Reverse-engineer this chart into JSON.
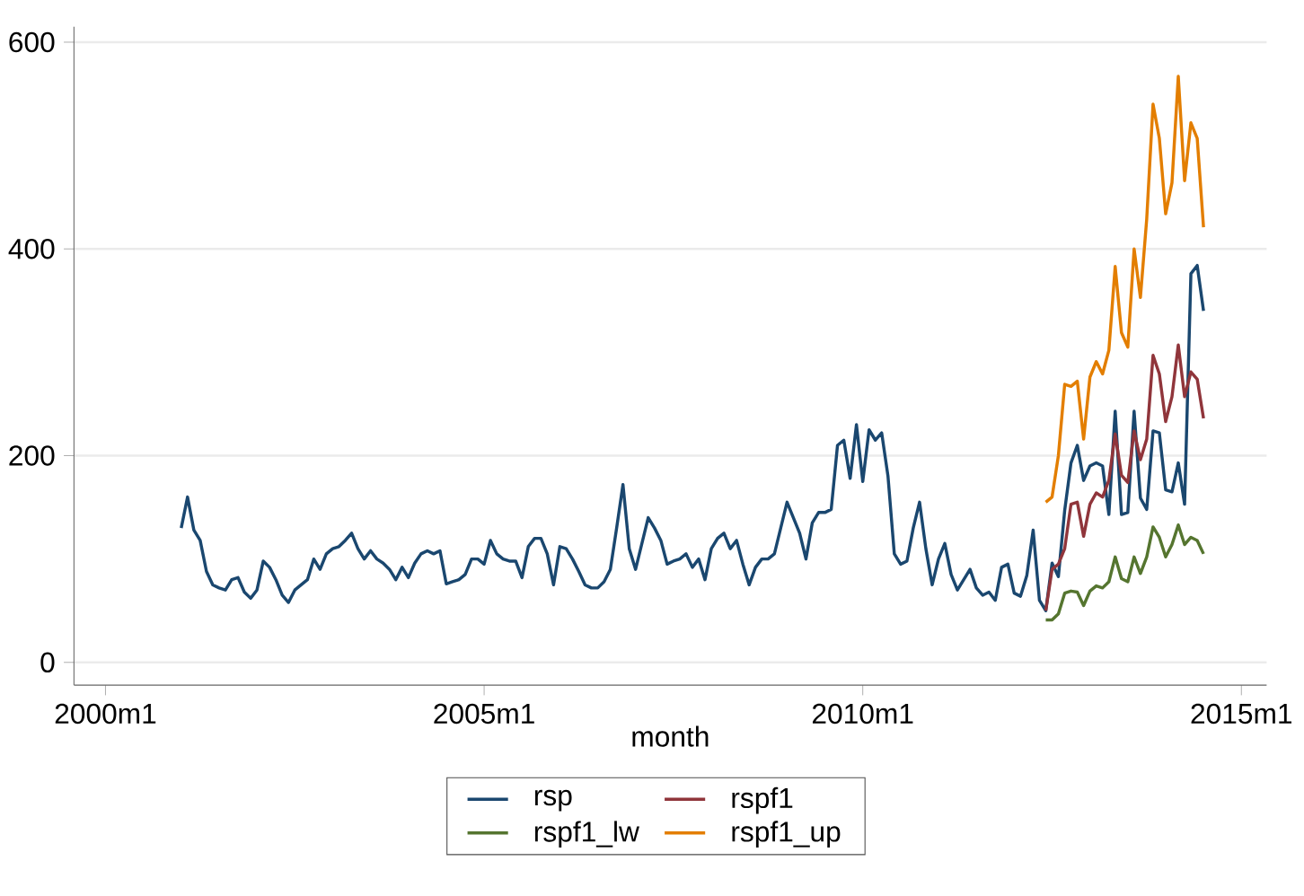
{
  "chart_data": {
    "type": "line",
    "xlabel": "month",
    "xlim": [
      "1999-08",
      "2015-05"
    ],
    "ylim": [
      -22,
      615
    ],
    "xticks": [
      {
        "value": "2000-01",
        "label": "2000m1"
      },
      {
        "value": "2005-01",
        "label": "2005m1"
      },
      {
        "value": "2010-01",
        "label": "2010m1"
      },
      {
        "value": "2015-01",
        "label": "2015m1"
      }
    ],
    "yticks": [
      0,
      200,
      400,
      600
    ],
    "grid": "y",
    "legend": "bottom",
    "series": [
      {
        "name": "rsp",
        "color": "#1a476f",
        "x": [
          "2001-01",
          "2001-02",
          "2001-03",
          "2001-04",
          "2001-05",
          "2001-06",
          "2001-07",
          "2001-08",
          "2001-09",
          "2001-10",
          "2001-11",
          "2001-12",
          "2002-01",
          "2002-02",
          "2002-03",
          "2002-04",
          "2002-05",
          "2002-06",
          "2002-07",
          "2002-08",
          "2002-09",
          "2002-10",
          "2002-11",
          "2002-12",
          "2003-01",
          "2003-02",
          "2003-03",
          "2003-04",
          "2003-05",
          "2003-06",
          "2003-07",
          "2003-08",
          "2003-09",
          "2003-10",
          "2003-11",
          "2003-12",
          "2004-01",
          "2004-02",
          "2004-03",
          "2004-04",
          "2004-05",
          "2004-06",
          "2004-07",
          "2004-08",
          "2004-09",
          "2004-10",
          "2004-11",
          "2004-12",
          "2005-01",
          "2005-02",
          "2005-03",
          "2005-04",
          "2005-05",
          "2005-06",
          "2005-07",
          "2005-08",
          "2005-09",
          "2005-10",
          "2005-11",
          "2005-12",
          "2006-01",
          "2006-02",
          "2006-03",
          "2006-04",
          "2006-05",
          "2006-06",
          "2006-07",
          "2006-08",
          "2006-09",
          "2006-10",
          "2006-11",
          "2006-12",
          "2007-01",
          "2007-02",
          "2007-03",
          "2007-04",
          "2007-05",
          "2007-06",
          "2007-07",
          "2007-08",
          "2007-09",
          "2007-10",
          "2007-11",
          "2007-12",
          "2008-01",
          "2008-02",
          "2008-03",
          "2008-04",
          "2008-05",
          "2008-06",
          "2008-07",
          "2008-08",
          "2008-09",
          "2008-10",
          "2008-11",
          "2008-12",
          "2009-01",
          "2009-02",
          "2009-03",
          "2009-04",
          "2009-05",
          "2009-06",
          "2009-07",
          "2009-08",
          "2009-09",
          "2009-10",
          "2009-11",
          "2009-12",
          "2010-01",
          "2010-02",
          "2010-03",
          "2010-04",
          "2010-05",
          "2010-06",
          "2010-07",
          "2010-08",
          "2010-09",
          "2010-10",
          "2010-11",
          "2010-12",
          "2011-01",
          "2011-02",
          "2011-03",
          "2011-04",
          "2011-05",
          "2011-06",
          "2011-07",
          "2011-08",
          "2011-09",
          "2011-10",
          "2011-11",
          "2011-12",
          "2012-01",
          "2012-02",
          "2012-03",
          "2012-04",
          "2012-05",
          "2012-06",
          "2012-07",
          "2012-08",
          "2012-09",
          "2012-10",
          "2012-11",
          "2012-12",
          "2013-01",
          "2013-02",
          "2013-03",
          "2013-04",
          "2013-05",
          "2013-06",
          "2013-07",
          "2013-08",
          "2013-09",
          "2013-10",
          "2013-11",
          "2013-12",
          "2014-01",
          "2014-02",
          "2014-03",
          "2014-04",
          "2014-05",
          "2014-06",
          "2014-07"
        ],
        "values": [
          130,
          160,
          128,
          118,
          88,
          75,
          72,
          70,
          80,
          82,
          68,
          62,
          70,
          98,
          92,
          80,
          65,
          58,
          70,
          75,
          80,
          100,
          90,
          105,
          110,
          112,
          118,
          125,
          110,
          100,
          108,
          100,
          96,
          90,
          80,
          92,
          82,
          96,
          105,
          108,
          105,
          108,
          76,
          78,
          80,
          85,
          100,
          100,
          95,
          118,
          105,
          100,
          98,
          98,
          82,
          112,
          120,
          120,
          105,
          75,
          112,
          110,
          100,
          88,
          75,
          72,
          72,
          78,
          90,
          130,
          172,
          110,
          90,
          115,
          140,
          130,
          118,
          95,
          98,
          100,
          105,
          92,
          100,
          80,
          110,
          120,
          125,
          110,
          118,
          95,
          75,
          92,
          100,
          100,
          105,
          130,
          155,
          140,
          125,
          100,
          135,
          145,
          145,
          148,
          210,
          215,
          178,
          230,
          175,
          225,
          215,
          222,
          180,
          105,
          95,
          98,
          130,
          155,
          110,
          75,
          100,
          115,
          85,
          70,
          80,
          90,
          72,
          65,
          68,
          60,
          92,
          95,
          67,
          64,
          84,
          128,
          60,
          50,
          96,
          83,
          147,
          193,
          210,
          176,
          190,
          193,
          190,
          143,
          243,
          143,
          145,
          243,
          159,
          148,
          224,
          222,
          167,
          165,
          193,
          153,
          376,
          384,
          340
        ]
      },
      {
        "name": "rspf1",
        "color": "#90353b",
        "x": [
          "2012-06",
          "2012-07",
          "2012-08",
          "2012-09",
          "2012-10",
          "2012-11",
          "2012-12",
          "2013-01",
          "2013-02",
          "2013-03",
          "2013-04",
          "2013-05",
          "2013-06",
          "2013-07",
          "2013-08",
          "2013-09",
          "2013-10",
          "2013-11",
          "2013-12",
          "2014-01",
          "2014-02",
          "2014-03",
          "2014-04",
          "2014-05",
          "2014-06",
          "2014-07"
        ],
        "values": [
          50,
          90,
          95,
          110,
          153,
          155,
          122,
          153,
          164,
          160,
          176,
          221,
          181,
          174,
          224,
          196,
          216,
          297,
          279,
          233,
          257,
          307,
          257,
          281,
          274,
          236
        ]
      },
      {
        "name": "rspf1_lw",
        "color": "#55752f",
        "x": [
          "2012-06",
          "2012-07",
          "2012-08",
          "2012-09",
          "2012-10",
          "2012-11",
          "2012-12",
          "2013-01",
          "2013-02",
          "2013-03",
          "2013-04",
          "2013-05",
          "2013-06",
          "2013-07",
          "2013-08",
          "2013-09",
          "2013-10",
          "2013-11",
          "2013-12",
          "2014-01",
          "2014-02",
          "2014-03",
          "2014-04",
          "2014-05",
          "2014-06",
          "2014-07"
        ],
        "values": [
          41,
          41,
          47,
          67,
          69,
          68,
          55,
          69,
          74,
          72,
          78,
          102,
          81,
          78,
          102,
          86,
          102,
          131,
          121,
          102,
          114,
          133,
          114,
          121,
          118,
          105
        ]
      },
      {
        "name": "rspf1_up",
        "color": "#e37e00",
        "x": [
          "2012-06",
          "2012-07",
          "2012-08",
          "2012-09",
          "2012-10",
          "2012-11",
          "2012-12",
          "2013-01",
          "2013-02",
          "2013-03",
          "2013-04",
          "2013-05",
          "2013-06",
          "2013-07",
          "2013-08",
          "2013-09",
          "2013-10",
          "2013-11",
          "2013-12",
          "2014-01",
          "2014-02",
          "2014-03",
          "2014-04",
          "2014-05",
          "2014-06",
          "2014-07"
        ],
        "values": [
          155,
          160,
          200,
          269,
          267,
          272,
          216,
          276,
          291,
          279,
          302,
          383,
          319,
          305,
          400,
          353,
          429,
          540,
          507,
          434,
          464,
          567,
          466,
          522,
          507,
          421
        ]
      }
    ]
  }
}
